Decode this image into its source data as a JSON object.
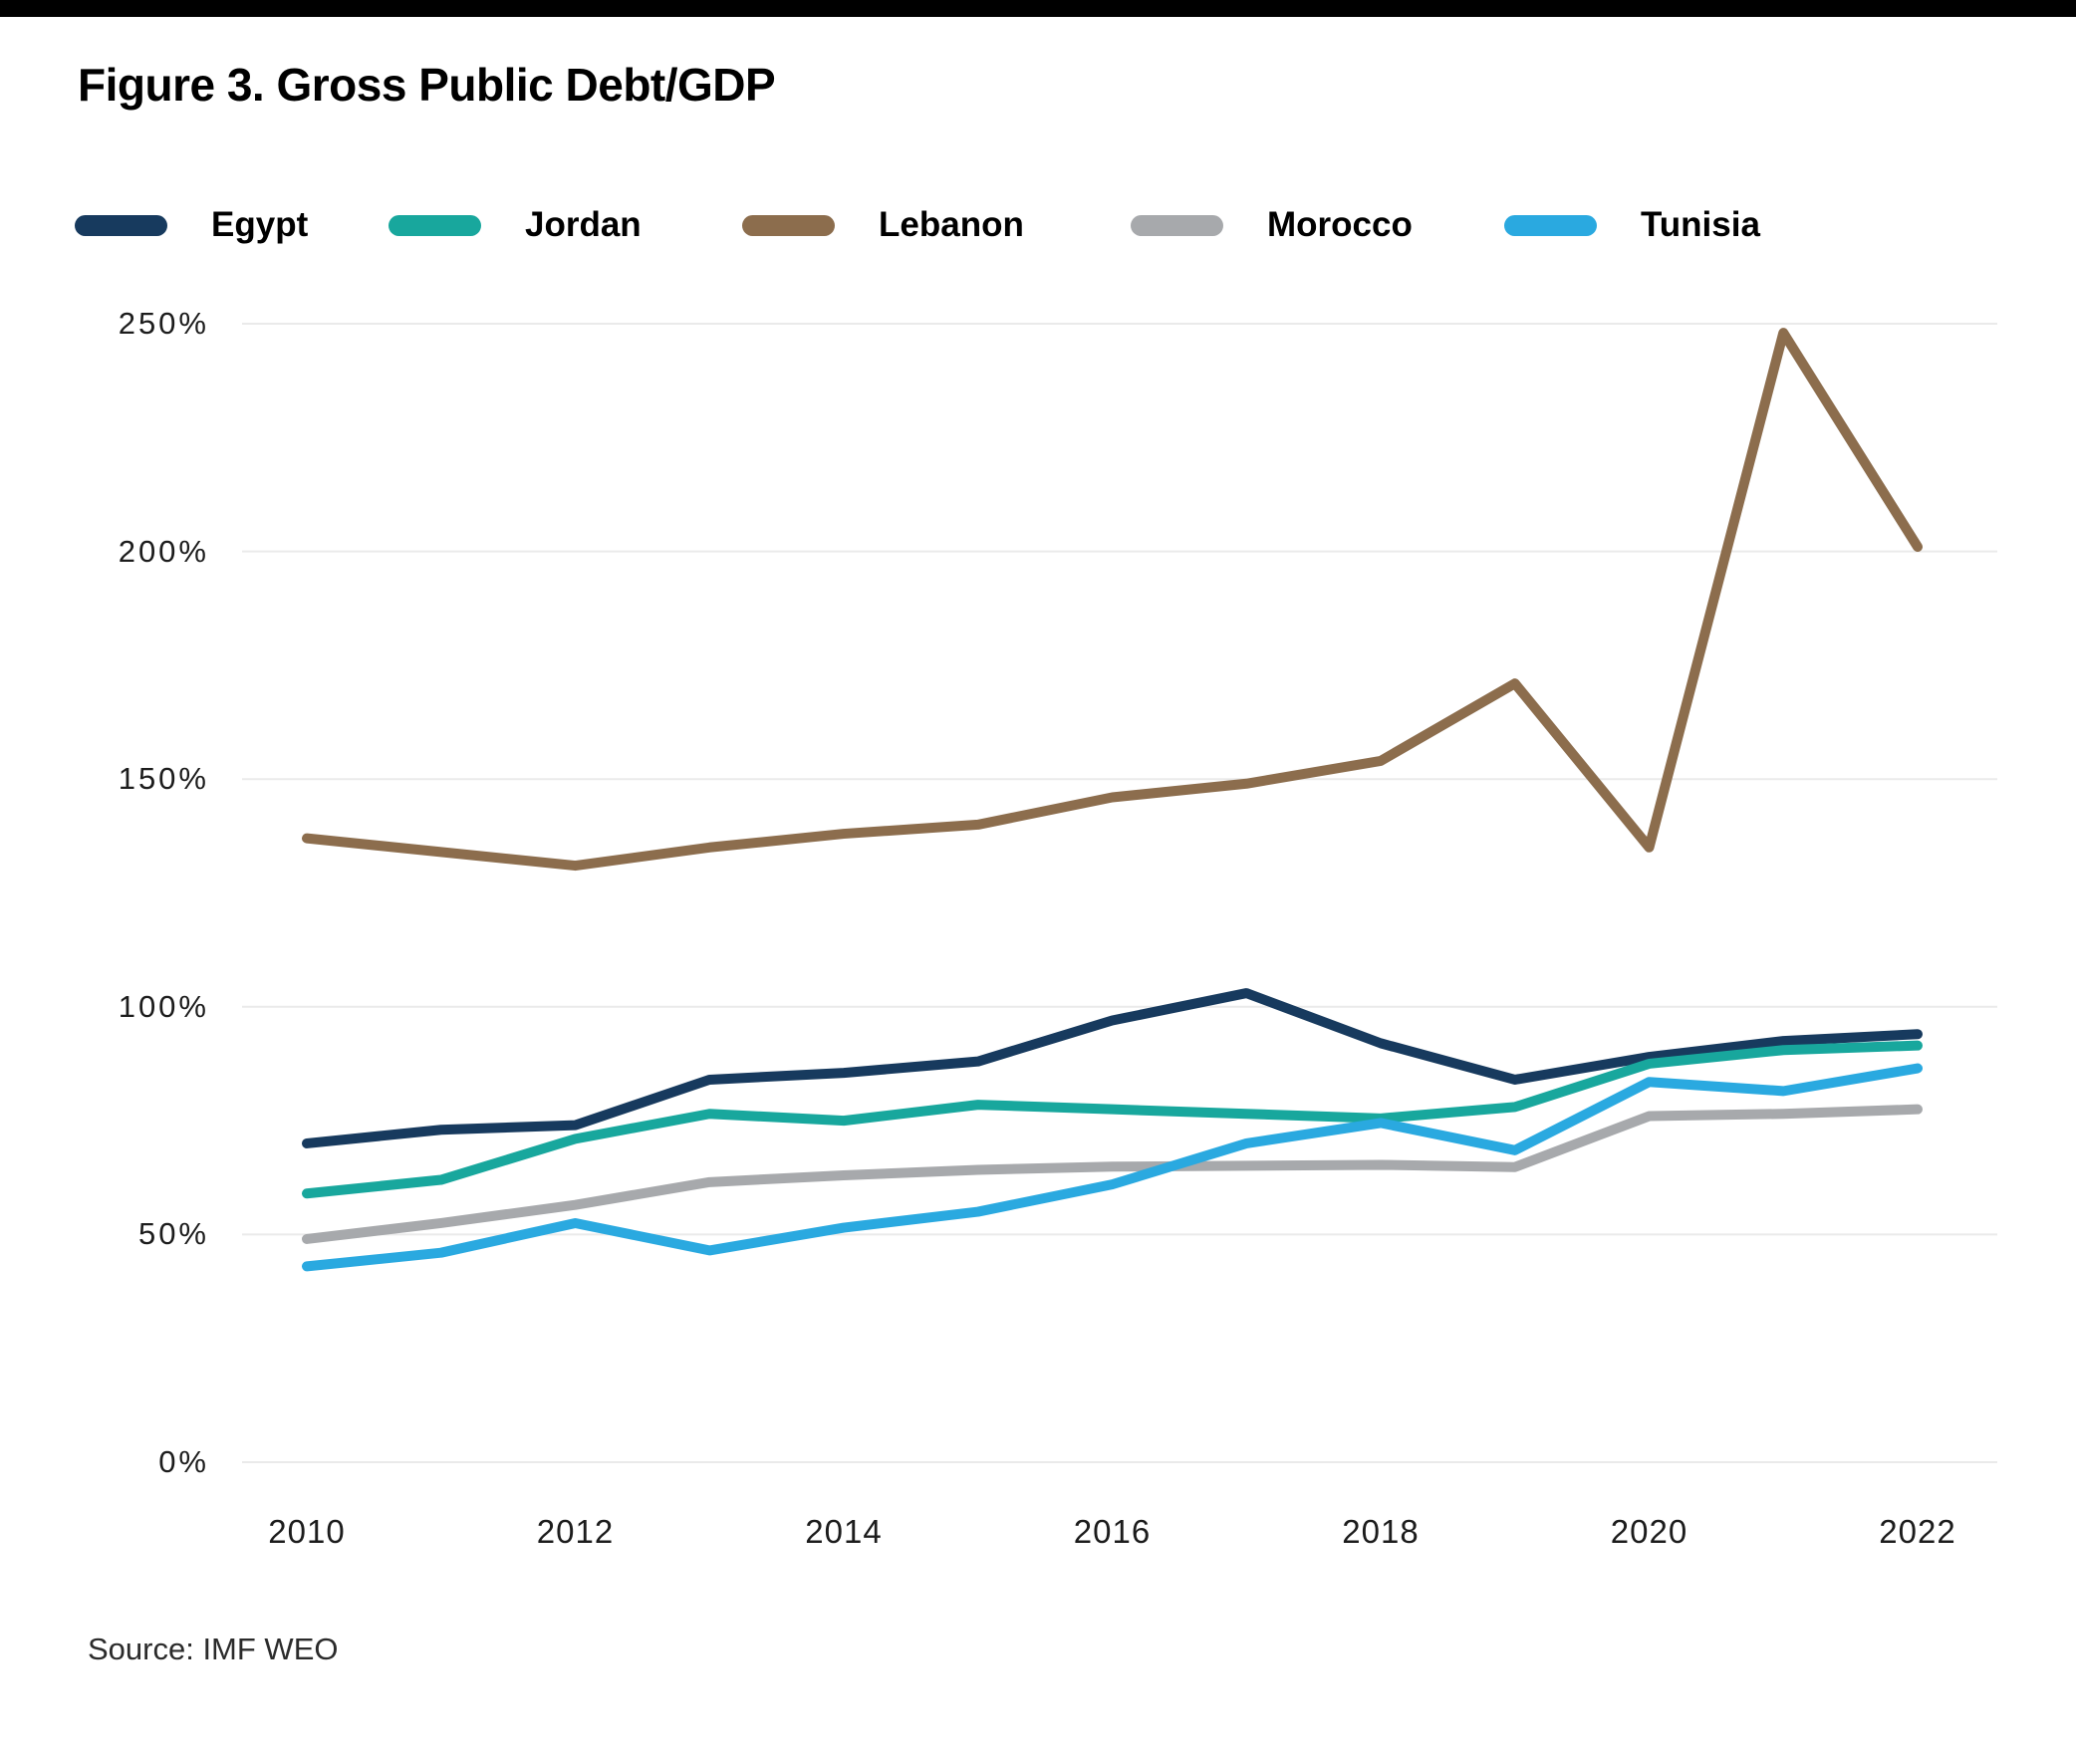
{
  "title": "Figure 3. Gross Public Debt/GDP",
  "source": "Source: IMF WEO",
  "colors": {
    "top_bar": "#000000",
    "grid": "#eaeaea",
    "axis_text": "#1c1c1c",
    "background": "#ffffff"
  },
  "chart_data": {
    "type": "line",
    "x": [
      2010,
      2011,
      2012,
      2013,
      2014,
      2015,
      2016,
      2017,
      2018,
      2019,
      2020,
      2021,
      2022
    ],
    "x_tick_labels": [
      "2010",
      "2012",
      "2014",
      "2016",
      "2018",
      "2020",
      "2022"
    ],
    "x_ticks": [
      2010,
      2012,
      2014,
      2016,
      2018,
      2020,
      2022
    ],
    "y_ticks": [
      0,
      50,
      100,
      150,
      200,
      250
    ],
    "y_tick_labels": [
      "0%",
      "50%",
      "100%",
      "150%",
      "200%",
      "250%"
    ],
    "ylim": [
      0,
      250
    ],
    "xlabel": "",
    "ylabel": "",
    "grid": "horizontal",
    "legend_position": "top",
    "units": "percent of GDP",
    "series": [
      {
        "name": "Egypt",
        "color": "#173a5e",
        "values": [
          70,
          73,
          74,
          84,
          85.5,
          88,
          97,
          103,
          92,
          84,
          89,
          92.5,
          94
        ]
      },
      {
        "name": "Jordan",
        "color": "#18a79d",
        "values": [
          59,
          62,
          71,
          76.5,
          75,
          78.5,
          77.5,
          76.5,
          75.5,
          78,
          87.5,
          90.5,
          91.5
        ]
      },
      {
        "name": "Lebanon",
        "color": "#8c6d4d",
        "values": [
          137,
          134,
          131,
          135,
          138,
          140,
          146,
          149,
          154,
          171,
          135,
          248,
          201
        ]
      },
      {
        "name": "Morocco",
        "color": "#a7a9ac",
        "values": [
          49,
          52.5,
          56.5,
          61.5,
          63,
          64.2,
          64.9,
          65.1,
          65.3,
          64.8,
          76,
          76.5,
          77.5
        ]
      },
      {
        "name": "Tunisia",
        "color": "#2aa9e0",
        "values": [
          43,
          46,
          52.5,
          46.5,
          51.5,
          55,
          61,
          70,
          74.5,
          68.5,
          83.5,
          81.5,
          86.5
        ]
      }
    ]
  }
}
